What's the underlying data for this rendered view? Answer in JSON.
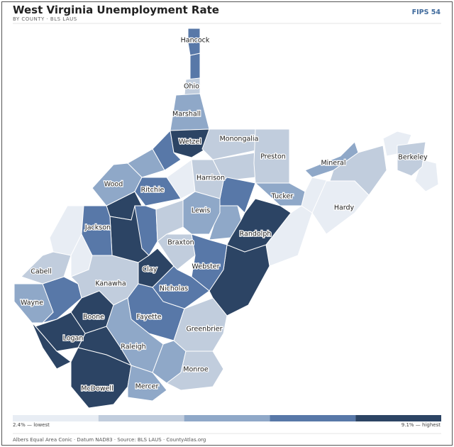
{
  "header": {
    "title": "West Virginia Unemployment Rate",
    "subtitle": "BY COUNTY · BLS LAUS",
    "badge": "FIPS 54"
  },
  "legend": {
    "colors": [
      "#e8edf4",
      "#c1cddd",
      "#8fa8c8",
      "#5878a8",
      "#2c4464"
    ],
    "low_label": "2.4% — lowest",
    "high_label": "9.1% — highest"
  },
  "footer": "Albers Equal Area Conic · Datum NAD83 · Source: BLS LAUS · CountyAtlas.org",
  "counties": [
    {
      "name": "Hancock",
      "color": "#5878a8"
    },
    {
      "name": "Ohio",
      "color": "#c1cddd"
    },
    {
      "name": "Marshall",
      "color": "#8fa8c8"
    },
    {
      "name": "Wetzel",
      "color": "#2c4464"
    },
    {
      "name": "Monongalia",
      "color": "#c1cddd"
    },
    {
      "name": "Preston",
      "color": "#c1cddd"
    },
    {
      "name": "Harrison",
      "color": "#c1cddd"
    },
    {
      "name": "Wood",
      "color": "#8fa8c8"
    },
    {
      "name": "Ritchie",
      "color": "#5878a8"
    },
    {
      "name": "Jackson",
      "color": "#5878a8"
    },
    {
      "name": "Lewis",
      "color": "#8fa8c8"
    },
    {
      "name": "Tucker",
      "color": "#8fa8c8"
    },
    {
      "name": "Randolph",
      "color": "#2c4464"
    },
    {
      "name": "Hardy",
      "color": "#e8edf4"
    },
    {
      "name": "Mineral",
      "color": "#8fa8c8"
    },
    {
      "name": "Berkeley",
      "color": "#c1cddd"
    },
    {
      "name": "Cabell",
      "color": "#c1cddd"
    },
    {
      "name": "Wayne",
      "color": "#8fa8c8"
    },
    {
      "name": "Kanawha",
      "color": "#c1cddd"
    },
    {
      "name": "Clay",
      "color": "#2c4464"
    },
    {
      "name": "Braxton",
      "color": "#c1cddd"
    },
    {
      "name": "Webster",
      "color": "#5878a8"
    },
    {
      "name": "Nicholas",
      "color": "#5878a8"
    },
    {
      "name": "Boone",
      "color": "#2c4464"
    },
    {
      "name": "Logan",
      "color": "#2c4464"
    },
    {
      "name": "Fayette",
      "color": "#5878a8"
    },
    {
      "name": "Raleigh",
      "color": "#8fa8c8"
    },
    {
      "name": "Greenbrier",
      "color": "#c1cddd"
    },
    {
      "name": "McDowell",
      "color": "#2c4464"
    },
    {
      "name": "Mercer",
      "color": "#8fa8c8"
    },
    {
      "name": "Monroe",
      "color": "#c1cddd"
    }
  ],
  "unlabeled_counties": [
    {
      "color": "#5878a8"
    },
    {
      "color": "#5878a8"
    },
    {
      "color": "#8fa8c8"
    },
    {
      "color": "#c1cddd"
    },
    {
      "color": "#e8edf4"
    },
    {
      "color": "#2c4464"
    },
    {
      "color": "#2c4464"
    },
    {
      "color": "#5878a8"
    },
    {
      "color": "#c1cddd"
    },
    {
      "color": "#8fa8c8"
    },
    {
      "color": "#5878a8"
    },
    {
      "color": "#e8edf4"
    },
    {
      "color": "#e8edf4"
    },
    {
      "color": "#c1cddd"
    },
    {
      "color": "#e8edf4"
    },
    {
      "color": "#e8edf4"
    },
    {
      "color": "#e8edf4"
    },
    {
      "color": "#e8edf4"
    },
    {
      "color": "#5878a8"
    },
    {
      "color": "#2c4464"
    },
    {
      "color": "#2c4464"
    },
    {
      "color": "#2c4464"
    },
    {
      "color": "#8fa8c8"
    }
  ]
}
